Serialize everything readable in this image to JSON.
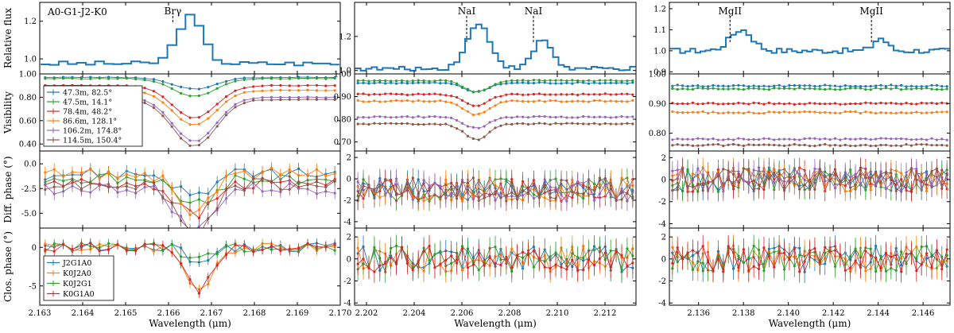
{
  "figure_title": "A0-G1-J2-K0",
  "colors": {
    "flux": "#1f77b4",
    "b1": "#1f77b4",
    "b2": "#2ca02c",
    "b3": "#d62728",
    "b4": "#ff7f0e",
    "b5": "#9467bd",
    "b6": "#8c564b"
  },
  "chart_data": {
    "type": "line",
    "title": "A0-G1-J2-K0",
    "rows": [
      {
        "id": "flux",
        "ylabel": "Relative flux"
      },
      {
        "id": "vis",
        "ylabel": "Visibility"
      },
      {
        "id": "dphi",
        "ylabel": "Diff. phase (°)"
      },
      {
        "id": "cp",
        "ylabel": "Clos. phase (°)"
      }
    ],
    "xlabel": "Wavelength (μm)",
    "columns": [
      {
        "name": "Brγ",
        "xlim": [
          2.163,
          2.17
        ],
        "xticks": [
          "2.163",
          "2.164",
          "2.165",
          "2.166",
          "2.167",
          "2.168",
          "2.169",
          "2.170"
        ],
        "lines": [
          {
            "label": "Brγ",
            "x": 2.1661
          }
        ],
        "flux": {
          "ylim": [
            0.92,
            1.3
          ],
          "yticks": [
            "1.0",
            "1.2"
          ],
          "feature": {
            "center": 2.1665,
            "width": 0.0003,
            "amp": 0.25
          },
          "base": 0.975
        },
        "vis": {
          "ylim": [
            0.34,
            1.0
          ],
          "yticks": [
            "0.40",
            "0.60",
            "0.80",
            "1.00"
          ],
          "levels": [
            0.97,
            0.96,
            0.9,
            0.86,
            0.8,
            0.78
          ],
          "depths": [
            0.1,
            0.15,
            0.28,
            0.3,
            0.38,
            0.4
          ],
          "center": 2.1666,
          "width": 0.0005
        },
        "dphi": {
          "ylim": [
            -6.5,
            1.3
          ],
          "yticks": [
            "0.0",
            "-2.5",
            "-5.0"
          ],
          "base": -1.0,
          "depth": 4.5,
          "center": 2.1666,
          "width": 0.0004
        },
        "cp": {
          "ylim": [
            -7.5,
            2.5
          ],
          "yticks": [
            "0",
            "-5"
          ],
          "depth": 5.5,
          "center": 2.1667,
          "width": 0.0003
        }
      },
      {
        "name": "NaI",
        "xlim": [
          2.2015,
          2.2133
        ],
        "xticks": [
          "2.202",
          "2.204",
          "2.206",
          "2.208",
          "2.210",
          "2.212"
        ],
        "lines": [
          {
            "label": "NaI",
            "x": 2.2062
          },
          {
            "label": "NaI",
            "x": 2.209
          }
        ],
        "flux": {
          "ylim": [
            0.98,
            1.4
          ],
          "yticks": [
            "1.0",
            "1.2"
          ],
          "features": [
            {
              "center": 2.2067,
              "width": 0.0005,
              "amp": 0.26
            },
            {
              "center": 2.2094,
              "width": 0.0004,
              "amp": 0.17
            }
          ],
          "base": 1.01
        },
        "vis": {
          "ylim": [
            0.66,
            1.0
          ],
          "yticks": [
            "0.70",
            "0.80",
            "0.90",
            "1.00"
          ],
          "levels": [
            0.96,
            0.97,
            0.91,
            0.88,
            0.81,
            0.78
          ],
          "depths": [
            0.04,
            0.05,
            0.05,
            0.06,
            0.05,
            0.07
          ],
          "center": 2.2066,
          "width": 0.0005
        },
        "dphi": {
          "ylim": [
            -4.6,
            2.6
          ],
          "yticks": [
            "2",
            "0",
            "-2",
            "-4"
          ],
          "base": -1.0
        },
        "cp": {
          "ylim": [
            -4.2,
            2.8
          ],
          "yticks": [
            "2",
            "0",
            "-2",
            "-4"
          ]
        }
      },
      {
        "name": "MgII",
        "xlim": [
          2.1347,
          2.1472
        ],
        "xticks": [
          "2.136",
          "2.138",
          "2.140",
          "2.142",
          "2.144",
          "2.146"
        ],
        "lines": [
          {
            "label": "MgII",
            "x": 2.1374
          },
          {
            "label": "MgII",
            "x": 2.1437
          }
        ],
        "flux": {
          "ylim": [
            0.89,
            1.23
          ],
          "yticks": [
            "0.9",
            "1.0",
            "1.1",
            "1.2"
          ],
          "features": [
            {
              "center": 2.1379,
              "width": 0.0005,
              "amp": 0.1
            },
            {
              "center": 2.1441,
              "width": 0.0003,
              "amp": 0.06
            }
          ],
          "base": 1.0
        },
        "vis": {
          "ylim": [
            0.74,
            1.0
          ],
          "yticks": [
            "0.80",
            "0.90",
            "1.00"
          ],
          "levels": [
            0.96,
            0.95,
            0.9,
            0.87,
            0.78,
            0.76
          ],
          "depths": [
            0,
            0,
            0,
            0,
            0,
            0
          ],
          "center": 2.14,
          "width": 0.001
        },
        "dphi": {
          "ylim": [
            -4.4,
            2.6
          ],
          "yticks": [
            "2",
            "0",
            "-2",
            "-4"
          ],
          "base": 0.0
        },
        "cp": {
          "ylim": [
            -4.2,
            2.8
          ],
          "yticks": [
            "2",
            "0",
            "-2",
            "-4"
          ]
        }
      }
    ],
    "legend_vis": [
      {
        "label": "47.3m, 82.5°",
        "color": "#1f77b4"
      },
      {
        "label": "47.5m, 14.1°",
        "color": "#2ca02c"
      },
      {
        "label": "78.4m, 48.2°",
        "color": "#d62728"
      },
      {
        "label": "86.6m, 128.1°",
        "color": "#ff7f0e"
      },
      {
        "label": "106.2m, 174.8°",
        "color": "#9467bd"
      },
      {
        "label": "114.5m, 150.4°",
        "color": "#8c564b"
      }
    ],
    "legend_cp": [
      {
        "label": "J2G1A0",
        "color": "#1f77b4"
      },
      {
        "label": "K0J2A0",
        "color": "#ff7f0e"
      },
      {
        "label": "K0J2G1",
        "color": "#2ca02c"
      },
      {
        "label": "K0G1A0",
        "color": "#d62728"
      }
    ]
  }
}
